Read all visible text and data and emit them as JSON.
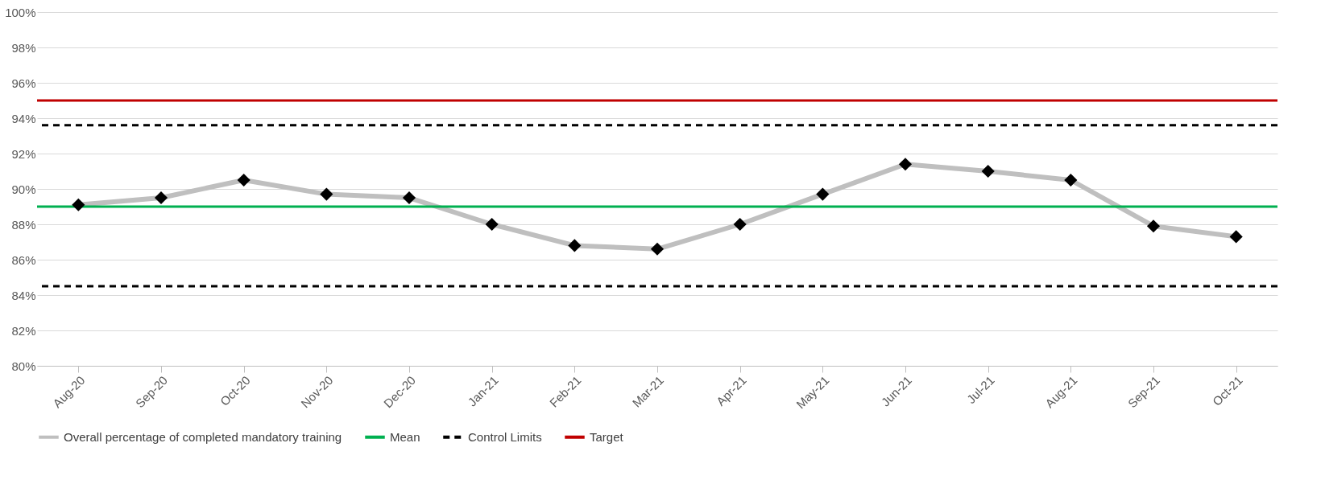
{
  "chart_data": {
    "type": "line",
    "categories": [
      "Aug-20",
      "Sep-20",
      "Oct-20",
      "Nov-20",
      "Dec-20",
      "Jan-21",
      "Feb-21",
      "Mar-21",
      "Apr-21",
      "May-21",
      "Jun-21",
      "Jul-21",
      "Aug-21",
      "Sep-21",
      "Oct-21"
    ],
    "series": [
      {
        "name": "Overall percentage of completed mandatory training",
        "color": "#bfbfbf",
        "values": [
          89.1,
          89.5,
          90.5,
          89.7,
          89.5,
          88.0,
          86.8,
          86.6,
          88.0,
          89.7,
          91.4,
          91.0,
          90.5,
          87.9,
          87.3
        ]
      }
    ],
    "ylim": [
      80,
      100
    ],
    "yticks": [
      {
        "value": 80,
        "label": "80%"
      },
      {
        "value": 82,
        "label": "82%"
      },
      {
        "value": 84,
        "label": "84%"
      },
      {
        "value": 86,
        "label": "86%"
      },
      {
        "value": 88,
        "label": "88%"
      },
      {
        "value": 90,
        "label": "90%"
      },
      {
        "value": 92,
        "label": "92%"
      },
      {
        "value": 94,
        "label": "94%"
      },
      {
        "value": 96,
        "label": "96%"
      },
      {
        "value": 98,
        "label": "98%"
      },
      {
        "value": 100,
        "label": "100%"
      }
    ],
    "ref_lines": [
      {
        "axis": "y",
        "value": 89.0,
        "label": "Mean",
        "color": "#00b050",
        "line_style": "solid"
      },
      {
        "axis": "y",
        "value": 93.6,
        "label": "Control Limits",
        "color": "#000000",
        "line_style": "dashed"
      },
      {
        "axis": "y",
        "value": 84.5,
        "label": null,
        "color": "#000000",
        "line_style": "dashed"
      },
      {
        "axis": "y",
        "value": 95,
        "label": "Target",
        "color": "#c00000",
        "line_style": "solid"
      }
    ],
    "grid": "y",
    "legend": "bottom",
    "marker": "diamond",
    "line_style": "solid"
  }
}
